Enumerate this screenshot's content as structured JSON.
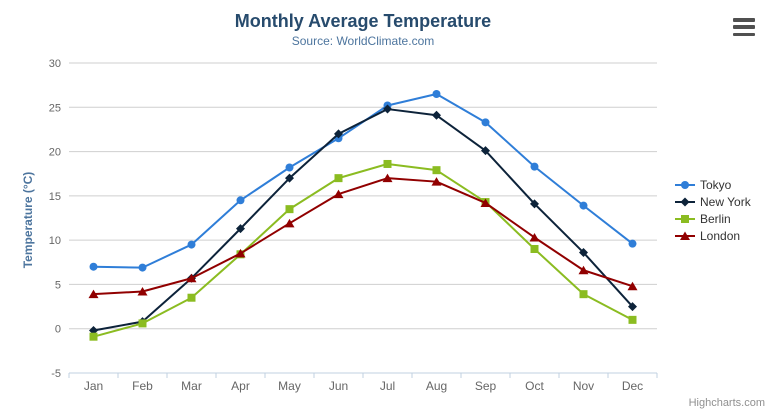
{
  "header": {
    "title": "Monthly Average Temperature",
    "subtitle": "Source: WorldClimate.com"
  },
  "credits": {
    "label": "Highcharts.com"
  },
  "export_menu": {
    "icon": "hamburger-icon"
  },
  "chart_data": {
    "type": "line",
    "title": "Monthly Average Temperature",
    "subtitle": "Source: WorldClimate.com",
    "xlabel": "",
    "ylabel": "Temperature (°C)",
    "categories": [
      "Jan",
      "Feb",
      "Mar",
      "Apr",
      "May",
      "Jun",
      "Jul",
      "Aug",
      "Sep",
      "Oct",
      "Nov",
      "Dec"
    ],
    "ylim": [
      -5,
      30
    ],
    "ytick_step": 5,
    "yticks": [
      -5,
      0,
      5,
      10,
      15,
      20,
      25,
      30
    ],
    "grid": true,
    "legend_position": "right",
    "series": [
      {
        "name": "Tokyo",
        "color": "#2f7ed8",
        "marker": "circle",
        "values": [
          7.0,
          6.9,
          9.5,
          14.5,
          18.2,
          21.5,
          25.2,
          26.5,
          23.3,
          18.3,
          13.9,
          9.6
        ]
      },
      {
        "name": "New York",
        "color": "#0d233a",
        "marker": "diamond",
        "values": [
          -0.2,
          0.8,
          5.7,
          11.3,
          17.0,
          22.0,
          24.8,
          24.1,
          20.1,
          14.1,
          8.6,
          2.5
        ]
      },
      {
        "name": "Berlin",
        "color": "#8bbc21",
        "marker": "square",
        "values": [
          -0.9,
          0.6,
          3.5,
          8.4,
          13.5,
          17.0,
          18.6,
          17.9,
          14.3,
          9.0,
          3.9,
          1.0
        ]
      },
      {
        "name": "London",
        "color": "#910000",
        "marker": "triangle",
        "values": [
          3.9,
          4.2,
          5.7,
          8.5,
          11.9,
          15.2,
          17.0,
          16.6,
          14.2,
          10.3,
          6.6,
          4.8
        ]
      }
    ],
    "style": {
      "title_color": "#274b6d",
      "subtitle_color": "#4d759e",
      "axis_title_color": "#4d759e",
      "tick_label_color": "#666666",
      "grid_color": "#cfcfcf",
      "axis_line_color": "#c0d0e0",
      "legend_text_color": "#333333"
    }
  }
}
